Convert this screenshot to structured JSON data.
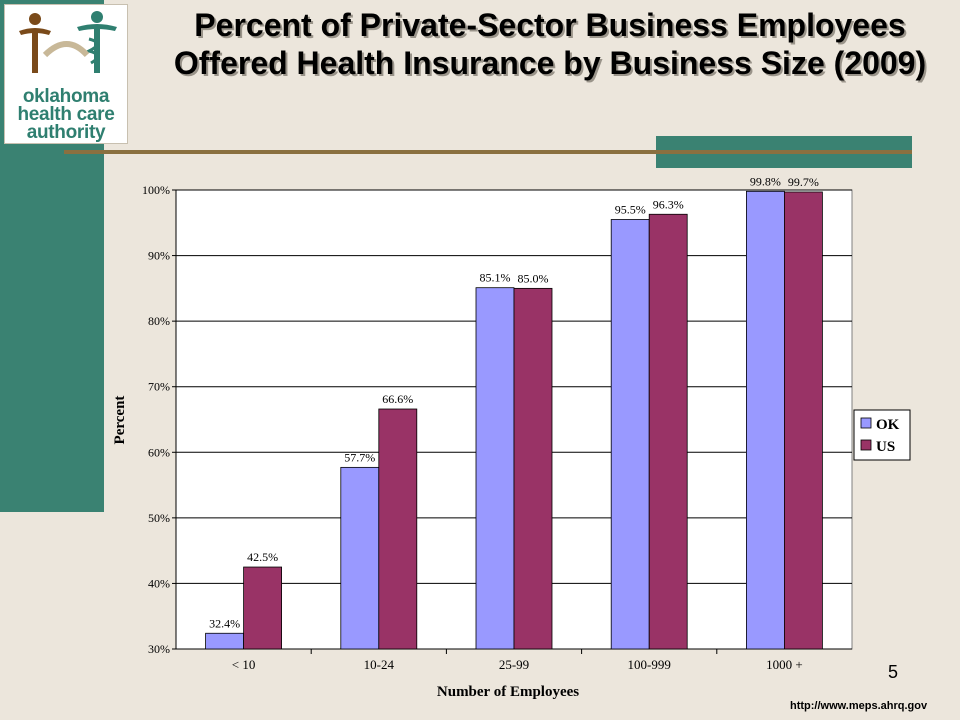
{
  "slide": {
    "title": "Percent of Private-Sector Business Employees Offered Health Insurance by Business Size (2009)",
    "page_number": "5",
    "source_url": "http://www.meps.ahrq.gov",
    "logo": {
      "line1": "oklahoma",
      "line2": "health care",
      "line3": "authority"
    },
    "colors": {
      "band": "#3a8272",
      "rule": "#8a7040",
      "background": "#ece6dc"
    }
  },
  "chart_data": {
    "type": "bar",
    "title": "",
    "xlabel": "Number of Employees",
    "ylabel": "Percent",
    "categories": [
      "< 10",
      "10-24",
      "25-99",
      "100-999",
      "1000 +"
    ],
    "series": [
      {
        "name": "OK",
        "color": "#9999ff",
        "values": [
          32.4,
          57.7,
          85.1,
          95.5,
          99.8
        ],
        "labels": [
          "32.4%",
          "57.7%",
          "85.1%",
          "95.5%",
          "99.8%"
        ]
      },
      {
        "name": "US",
        "color": "#993366",
        "values": [
          42.5,
          66.6,
          85.0,
          96.3,
          99.7
        ],
        "labels": [
          "42.5%",
          "66.6%",
          "85.0%",
          "96.3%",
          "99.7%"
        ]
      }
    ],
    "ylim": [
      30,
      100
    ],
    "yticks": [
      30,
      40,
      50,
      60,
      70,
      80,
      90,
      100
    ],
    "ytick_labels": [
      "30%",
      "40%",
      "50%",
      "60%",
      "70%",
      "80%",
      "90%",
      "100%"
    ],
    "grid": true,
    "legend": "right"
  }
}
